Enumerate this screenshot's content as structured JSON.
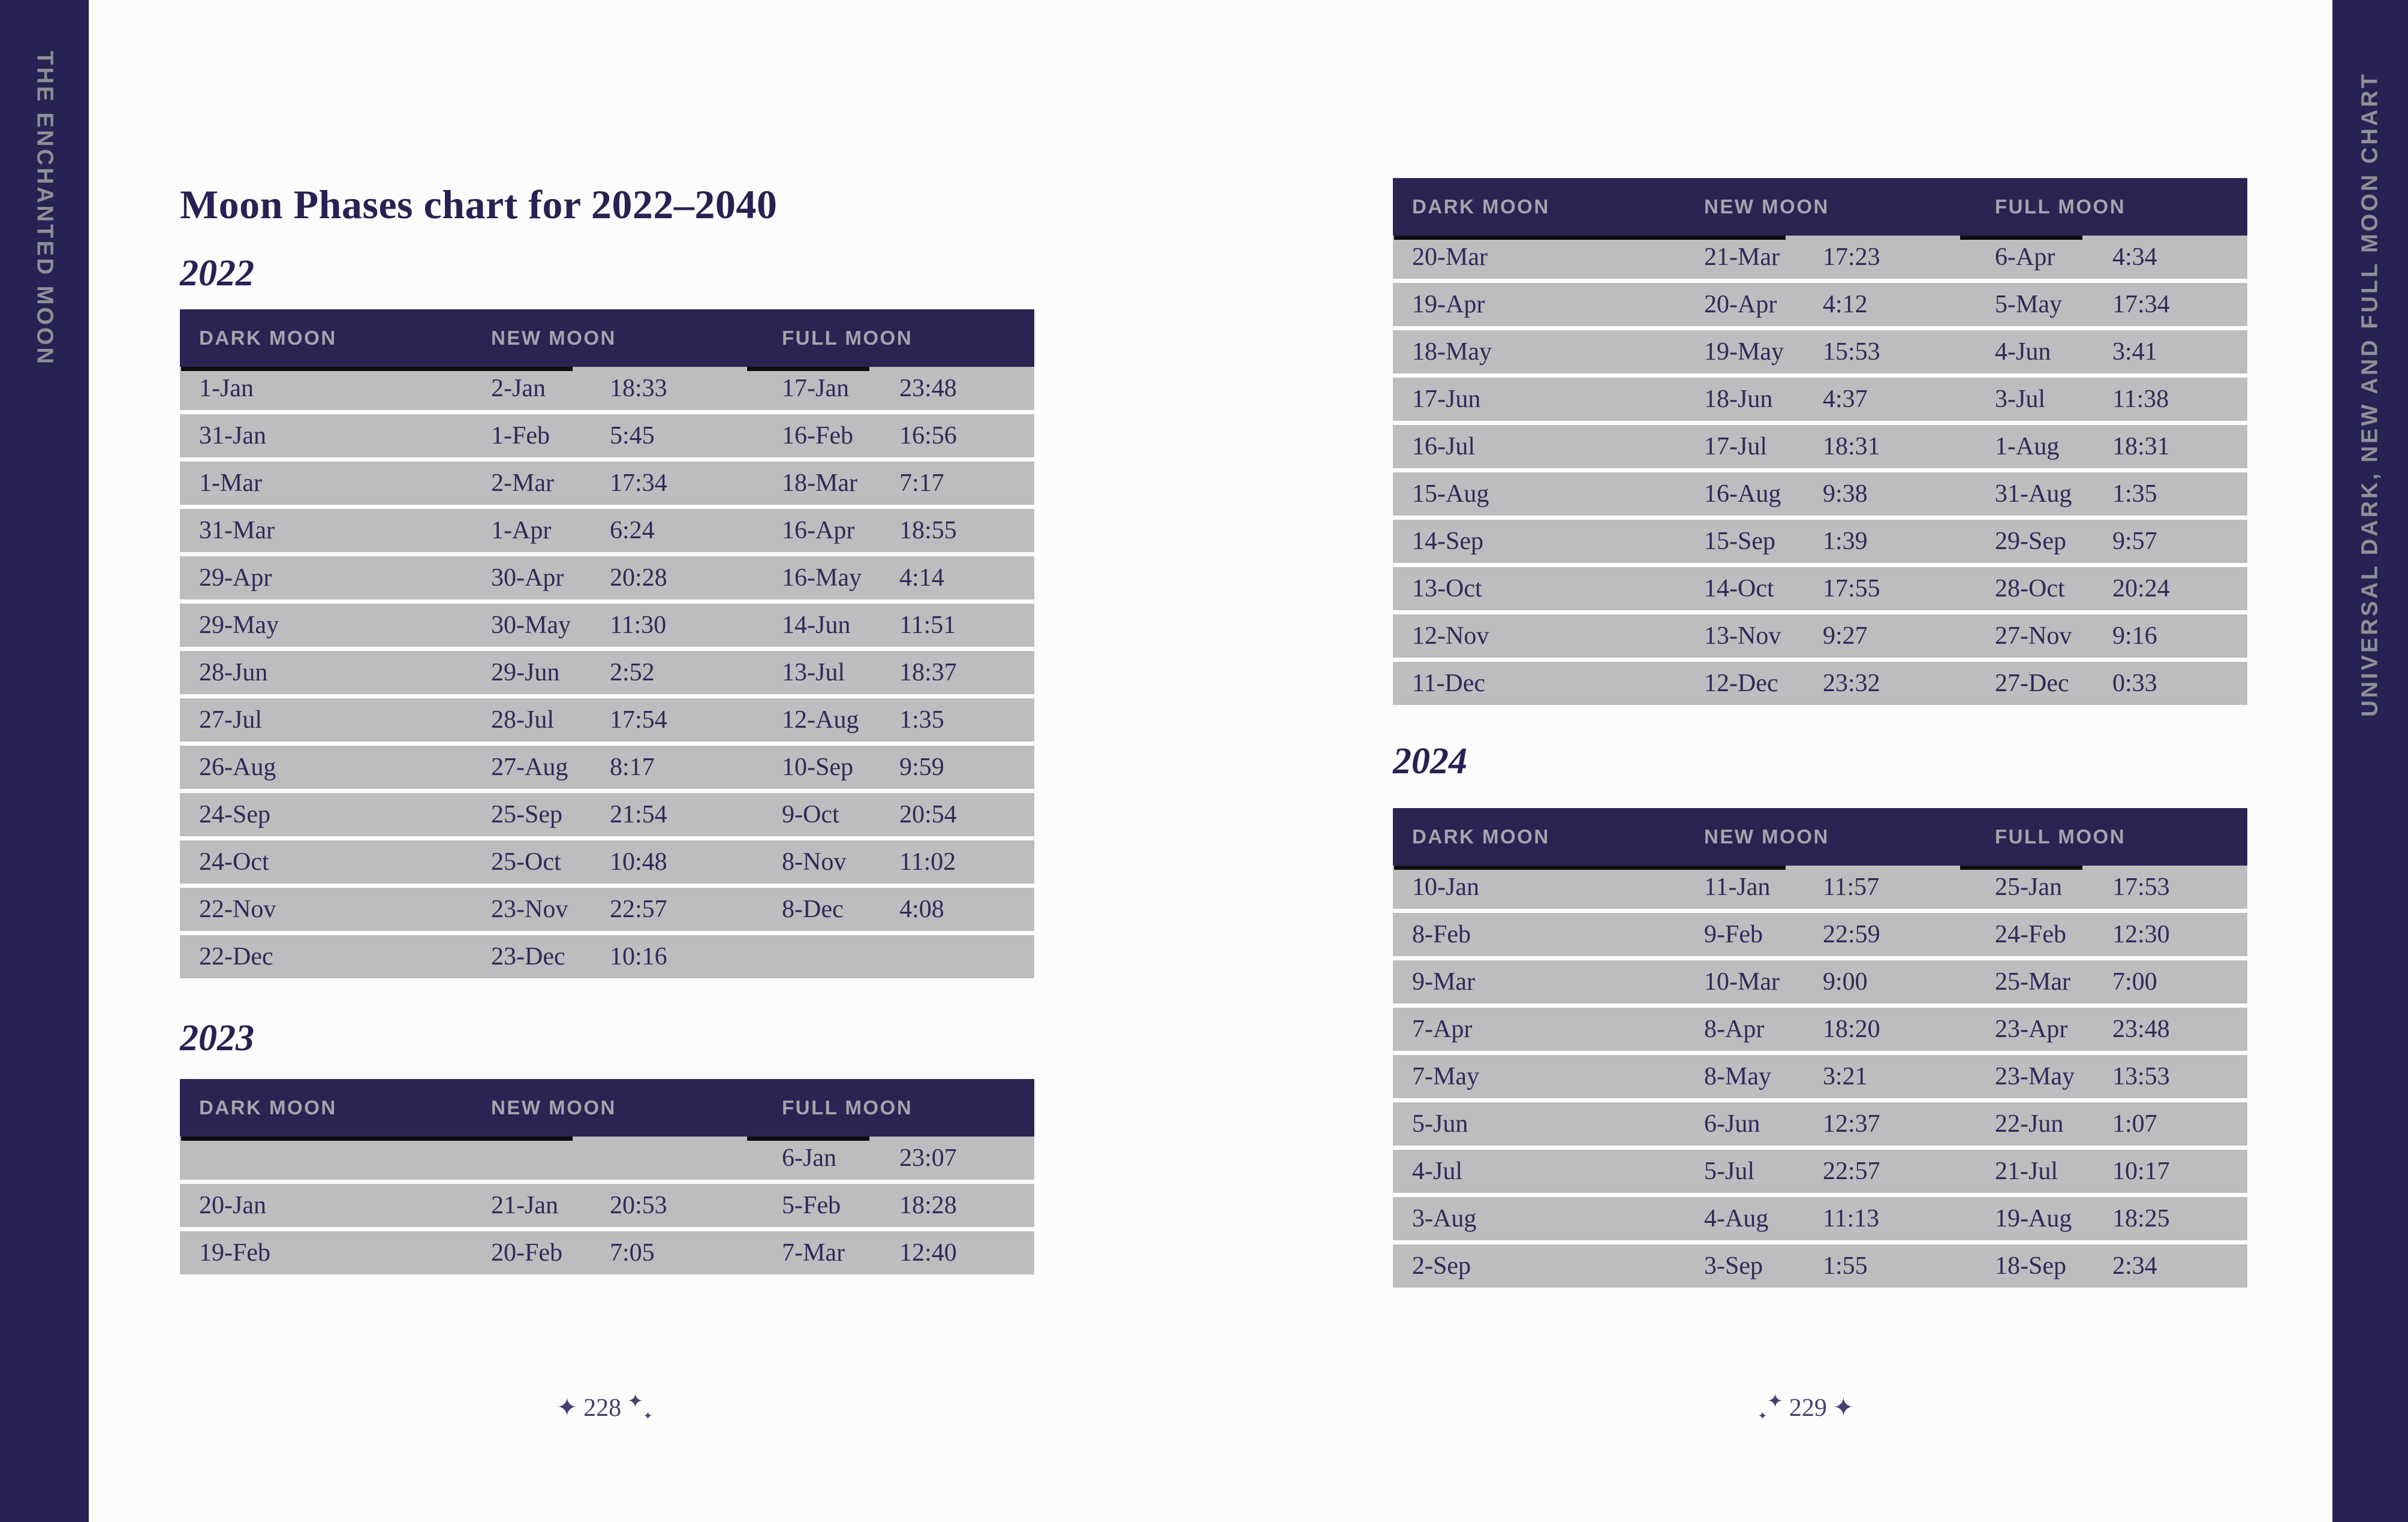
{
  "book": {
    "left_spine_text": "THE ENCHANTED MOON",
    "right_spine_text": "UNIVERSAL DARK, NEW AND FULL MOON CHART",
    "title": "Moon Phases chart for 2022–2040",
    "left_page_number": "228",
    "right_page_number": "229",
    "star_glyph": "✦"
  },
  "table_headers": [
    "DARK MOON",
    "NEW MOON",
    "FULL MOON"
  ],
  "tables": [
    {
      "year": "2022",
      "rows": [
        [
          "1-Jan",
          "2-Jan",
          "18:33",
          "17-Jan",
          "23:48"
        ],
        [
          "31-Jan",
          "1-Feb",
          "5:45",
          "16-Feb",
          "16:56"
        ],
        [
          "1-Mar",
          "2-Mar",
          "17:34",
          "18-Mar",
          "7:17"
        ],
        [
          "31-Mar",
          "1-Apr",
          "6:24",
          "16-Apr",
          "18:55"
        ],
        [
          "29-Apr",
          "30-Apr",
          "20:28",
          "16-May",
          "4:14"
        ],
        [
          "29-May",
          "30-May",
          "11:30",
          "14-Jun",
          "11:51"
        ],
        [
          "28-Jun",
          "29-Jun",
          "2:52",
          "13-Jul",
          "18:37"
        ],
        [
          "27-Jul",
          "28-Jul",
          "17:54",
          "12-Aug",
          "1:35"
        ],
        [
          "26-Aug",
          "27-Aug",
          "8:17",
          "10-Sep",
          "9:59"
        ],
        [
          "24-Sep",
          "25-Sep",
          "21:54",
          "9-Oct",
          "20:54"
        ],
        [
          "24-Oct",
          "25-Oct",
          "10:48",
          "8-Nov",
          "11:02"
        ],
        [
          "22-Nov",
          "23-Nov",
          "22:57",
          "8-Dec",
          "4:08"
        ],
        [
          "22-Dec",
          "23-Dec",
          "10:16",
          "",
          ""
        ]
      ]
    },
    {
      "year": "2023",
      "rows": [
        [
          "",
          "",
          "",
          "6-Jan",
          "23:07"
        ],
        [
          "20-Jan",
          "21-Jan",
          "20:53",
          "5-Feb",
          "18:28"
        ],
        [
          "19-Feb",
          "20-Feb",
          "7:05",
          "7-Mar",
          "12:40"
        ]
      ]
    },
    {
      "year": "",
      "rows": [
        [
          "20-Mar",
          "21-Mar",
          "17:23",
          "6-Apr",
          "4:34"
        ],
        [
          "19-Apr",
          "20-Apr",
          "4:12",
          "5-May",
          "17:34"
        ],
        [
          "18-May",
          "19-May",
          "15:53",
          "4-Jun",
          "3:41"
        ],
        [
          "17-Jun",
          "18-Jun",
          "4:37",
          "3-Jul",
          "11:38"
        ],
        [
          "16-Jul",
          "17-Jul",
          "18:31",
          "1-Aug",
          "18:31"
        ],
        [
          "15-Aug",
          "16-Aug",
          "9:38",
          "31-Aug",
          "1:35"
        ],
        [
          "14-Sep",
          "15-Sep",
          "1:39",
          "29-Sep",
          "9:57"
        ],
        [
          "13-Oct",
          "14-Oct",
          "17:55",
          "28-Oct",
          "20:24"
        ],
        [
          "12-Nov",
          "13-Nov",
          "9:27",
          "27-Nov",
          "9:16"
        ],
        [
          "11-Dec",
          "12-Dec",
          "23:32",
          "27-Dec",
          "0:33"
        ]
      ]
    },
    {
      "year": "2024",
      "rows": [
        [
          "10-Jan",
          "11-Jan",
          "11:57",
          "25-Jan",
          "17:53"
        ],
        [
          "8-Feb",
          "9-Feb",
          "22:59",
          "24-Feb",
          "12:30"
        ],
        [
          "9-Mar",
          "10-Mar",
          "9:00",
          "25-Mar",
          "7:00"
        ],
        [
          "7-Apr",
          "8-Apr",
          "18:20",
          "23-Apr",
          "23:48"
        ],
        [
          "7-May",
          "8-May",
          "3:21",
          "23-May",
          "13:53"
        ],
        [
          "5-Jun",
          "6-Jun",
          "12:37",
          "22-Jun",
          "1:07"
        ],
        [
          "4-Jul",
          "5-Jul",
          "22:57",
          "21-Jul",
          "10:17"
        ],
        [
          "3-Aug",
          "4-Aug",
          "11:13",
          "19-Aug",
          "18:25"
        ],
        [
          "2-Sep",
          "3-Sep",
          "1:55",
          "18-Sep",
          "2:34"
        ]
      ]
    }
  ],
  "colors": {
    "navy": "#272253",
    "header_navy": "#2a2453",
    "row_gray": "#bdbdbf",
    "row_text": "#2e2a58",
    "header_text": "#a5a4ab",
    "spine_text": "#8f8f96",
    "page_number": "#454070",
    "page_bg": "#fcfcfc",
    "black_rule": "#0d0d0d"
  }
}
